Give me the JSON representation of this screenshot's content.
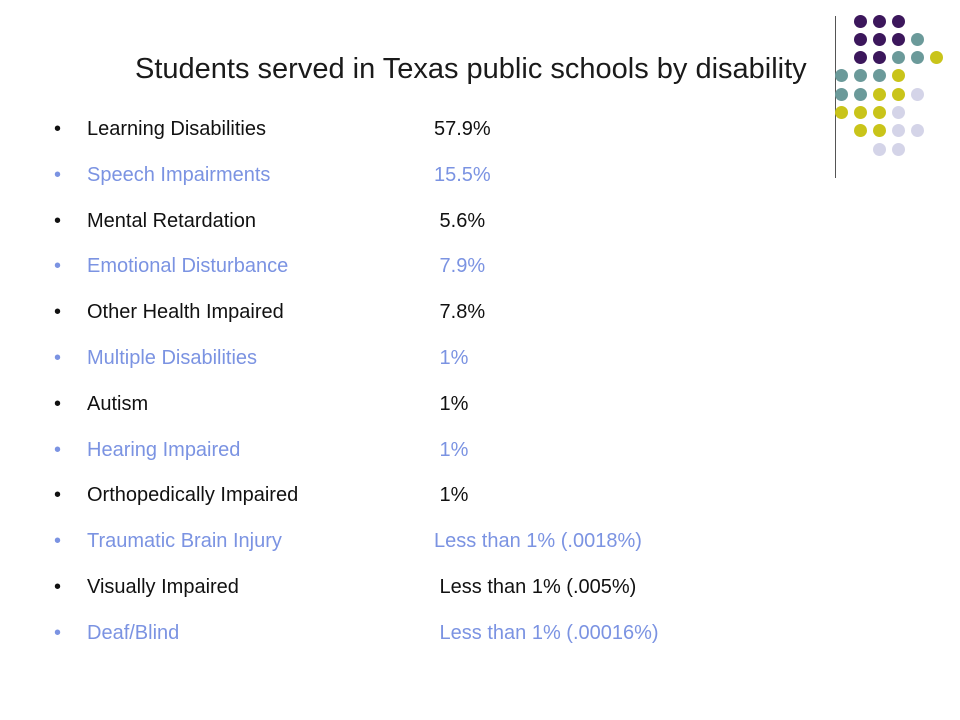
{
  "slide": {
    "title": "Students served in Texas public schools by disability",
    "bullet": "•",
    "colors": {
      "dark_text": "#111111",
      "blue_text": "#7b93e2",
      "purple": "#3c175c",
      "teal": "#6b9a9a",
      "olive": "#c9c41a",
      "lavender": "#d4d4e8"
    },
    "decoration": {
      "name": "dot-grid-corner",
      "dot_rows": [
        [
          "purple",
          "purple",
          "purple"
        ],
        [
          "purple",
          "purple",
          "purple",
          "teal"
        ],
        [
          "purple",
          "purple",
          "teal",
          "teal",
          "olive"
        ],
        [
          "teal",
          "teal",
          "teal",
          "olive"
        ],
        [
          "teal",
          "teal",
          "olive",
          "olive",
          "lavender"
        ],
        [
          "olive",
          "olive",
          "olive",
          "lavender"
        ],
        [
          "olive",
          "olive",
          "lavender",
          "lavender"
        ],
        [
          "lavender",
          "lavender"
        ]
      ]
    },
    "items": [
      {
        "label": "Learning Disabilities",
        "value": "57.9%",
        "style": "dark"
      },
      {
        "label": "Speech Impairments",
        "value": "15.5%",
        "style": "blue"
      },
      {
        "label": "Mental Retardation",
        "value": " 5.6%",
        "style": "dark"
      },
      {
        "label": "Emotional Disturbance",
        "value": " 7.9%",
        "style": "blue"
      },
      {
        "label": "Other Health Impaired",
        "value": " 7.8%",
        "style": "dark"
      },
      {
        "label": "Multiple Disabilities",
        "value": " 1%",
        "style": "blue"
      },
      {
        "label": "Autism",
        "value": " 1%",
        "style": "dark"
      },
      {
        "label": "Hearing Impaired",
        "value": " 1%",
        "style": "blue"
      },
      {
        "label": "Orthopedically Impaired",
        "value": " 1%",
        "style": "dark"
      },
      {
        "label": "Traumatic Brain Injury",
        "value": "Less than 1% (.0018%)",
        "style": "blue"
      },
      {
        "label": "Visually Impaired",
        "value": " Less than 1% (.005%)",
        "style": "dark"
      },
      {
        "label": "Deaf/Blind",
        "value": " Less than 1% (.00016%)",
        "style": "blue"
      }
    ]
  }
}
